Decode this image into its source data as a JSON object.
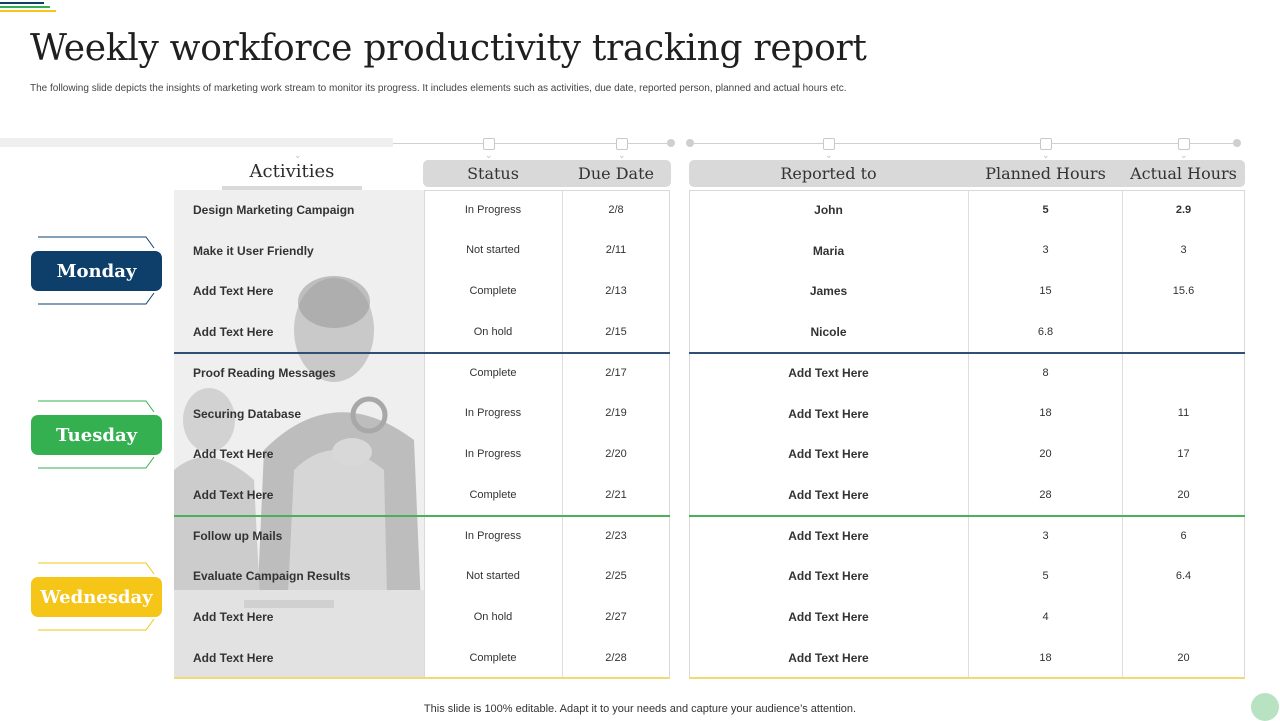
{
  "title": "Weekly workforce productivity tracking report",
  "subtitle": "The following slide depicts the insights of marketing work stream to monitor its progress. It includes elements such as activities, due date, reported person, planned and actual hours etc.",
  "headers": {
    "activities": "Activities",
    "status": "Status",
    "due_date": "Due Date",
    "reported_to": "Reported to",
    "planned_hours": "Planned Hours",
    "actual_hours": "Actual Hours"
  },
  "days": [
    {
      "label": "Monday",
      "color": "#0e3f6b"
    },
    {
      "label": "Tuesday",
      "color": "#34b050"
    },
    {
      "label": "Wednesday",
      "color": "#f5c518"
    }
  ],
  "rows": [
    {
      "activity": "Design Marketing Campaign",
      "status": "In Progress",
      "due": "2/8",
      "reported": "John",
      "planned": "5",
      "actual": "2.9"
    },
    {
      "activity": "Make it User Friendly",
      "status": "Not started",
      "due": "2/11",
      "reported": "Maria",
      "planned": "3",
      "actual": "3"
    },
    {
      "activity": "Add Text Here",
      "status": "Complete",
      "due": "2/13",
      "reported": "James",
      "planned": "15",
      "actual": "15.6"
    },
    {
      "activity": "Add Text Here",
      "status": "On hold",
      "due": "2/15",
      "reported": "Nicole",
      "planned": "6.8",
      "actual": ""
    },
    {
      "activity": "Proof Reading Messages",
      "status": "Complete",
      "due": "2/17",
      "reported": "Add Text Here",
      "planned": "8",
      "actual": ""
    },
    {
      "activity": "Securing Database",
      "status": "In Progress",
      "due": "2/19",
      "reported": "Add Text Here",
      "planned": "18",
      "actual": "11"
    },
    {
      "activity": "Add Text Here",
      "status": "In Progress",
      "due": "2/20",
      "reported": "Add Text Here",
      "planned": "20",
      "actual": "17"
    },
    {
      "activity": "Add Text Here",
      "status": "Complete",
      "due": "2/21",
      "reported": "Add Text Here",
      "planned": "28",
      "actual": "20"
    },
    {
      "activity": "Follow up Mails",
      "status": "In Progress",
      "due": "2/23",
      "reported": "Add Text Here",
      "planned": "3",
      "actual": "6"
    },
    {
      "activity": "Evaluate Campaign Results",
      "status": "Not started",
      "due": "2/25",
      "reported": "Add Text Here",
      "planned": "5",
      "actual": "6.4"
    },
    {
      "activity": "Add Text Here",
      "status": "On hold",
      "due": "2/27",
      "reported": "Add Text Here",
      "planned": "4",
      "actual": ""
    },
    {
      "activity": "Add Text Here",
      "status": "Complete",
      "due": "2/28",
      "reported": "Add Text Here",
      "planned": "18",
      "actual": "20"
    }
  ],
  "footer": "This slide is 100% editable. Adapt it to your needs and capture your audience’s attention.",
  "colors": {
    "monday_separator": "#2f4f75",
    "tuesday_separator": "#4caf5a",
    "bottom_line": "#f3d873"
  }
}
